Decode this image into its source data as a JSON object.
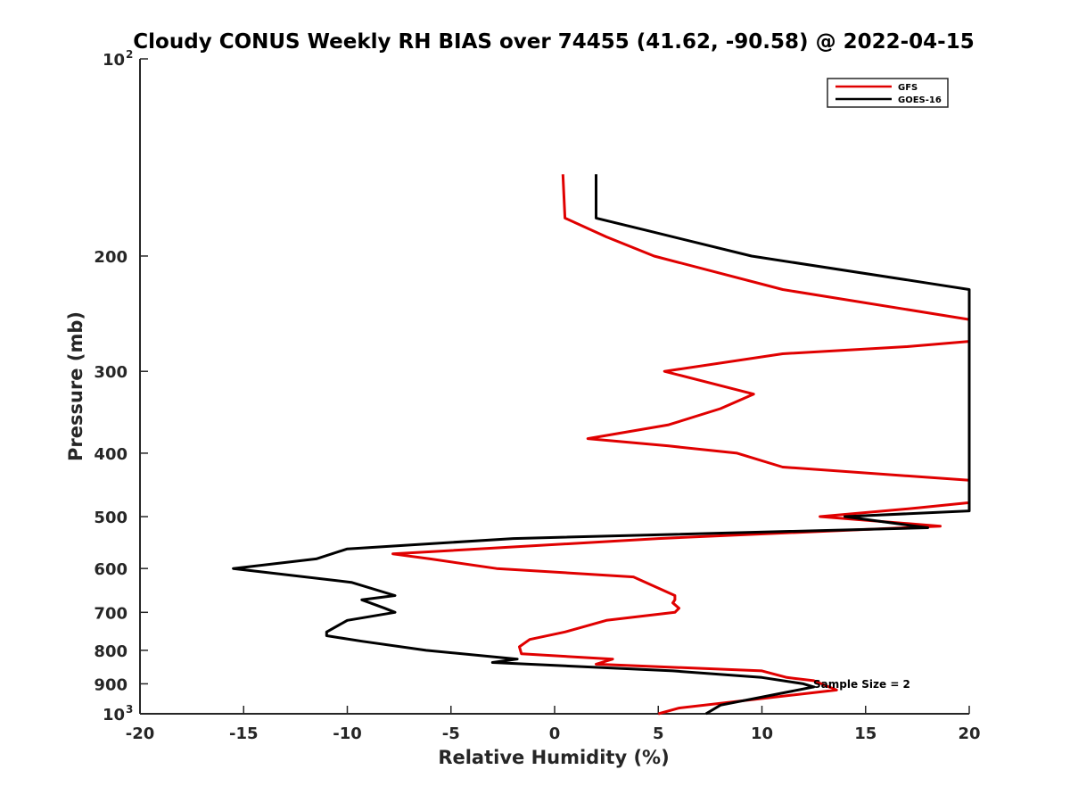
{
  "chart_data": {
    "type": "line",
    "title": "Cloudy CONUS Weekly RH BIAS over 74455 (41.62, -90.58) @ 2022-04-15",
    "xlabel": "Relative Humidity (%)",
    "ylabel": "Pressure (mb)",
    "xlim": [
      -20,
      20
    ],
    "ylim": [
      100,
      1000
    ],
    "y_scale": "log",
    "y_reversed": true,
    "x_ticks": [
      -20,
      -15,
      -10,
      -5,
      0,
      5,
      10,
      15,
      20
    ],
    "x_tick_labels": [
      "-20",
      "-15",
      "-10",
      "-5",
      "0",
      "5",
      "10",
      "15",
      "20"
    ],
    "y_ticks": [
      {
        "value": 100,
        "label": "10",
        "exp": "2"
      },
      {
        "value": 200,
        "label": "200"
      },
      {
        "value": 300,
        "label": "300"
      },
      {
        "value": 400,
        "label": "400"
      },
      {
        "value": 500,
        "label": "500"
      },
      {
        "value": 600,
        "label": "600"
      },
      {
        "value": 700,
        "label": "700"
      },
      {
        "value": 800,
        "label": "800"
      },
      {
        "value": 900,
        "label": "900"
      },
      {
        "value": 1000,
        "label": "10",
        "exp": "3"
      }
    ],
    "grid": false,
    "legend_position": "top-right",
    "annotation": "Sample Size = 2",
    "series": [
      {
        "name": "GFS",
        "color": "#e00000",
        "points": [
          [
            0.4,
            150
          ],
          [
            0.5,
            175
          ],
          [
            2.5,
            187
          ],
          [
            4.8,
            200
          ],
          [
            11.0,
            225
          ],
          [
            20.0,
            250
          ],
          [
            20.0,
            270
          ],
          [
            17.0,
            275
          ],
          [
            11.0,
            282
          ],
          [
            5.3,
            300
          ],
          [
            9.6,
            325
          ],
          [
            8.0,
            342
          ],
          [
            5.5,
            362
          ],
          [
            1.6,
            380
          ],
          [
            5.5,
            390
          ],
          [
            8.8,
            400
          ],
          [
            11.0,
            420
          ],
          [
            20.0,
            440
          ],
          [
            20.0,
            476
          ],
          [
            17.5,
            485
          ],
          [
            12.8,
            500
          ],
          [
            18.6,
            517
          ],
          [
            5.0,
            540
          ],
          [
            -7.8,
            570
          ],
          [
            -6.0,
            580
          ],
          [
            -2.8,
            600
          ],
          [
            3.8,
            618
          ],
          [
            5.8,
            660
          ],
          [
            5.8,
            670
          ],
          [
            5.7,
            677
          ],
          [
            6.0,
            690
          ],
          [
            5.8,
            700
          ],
          [
            2.5,
            720
          ],
          [
            0.5,
            750
          ],
          [
            -1.2,
            770
          ],
          [
            -1.7,
            790
          ],
          [
            -1.6,
            810
          ],
          [
            2.8,
            825
          ],
          [
            2.0,
            840
          ],
          [
            10.0,
            860
          ],
          [
            11.2,
            880
          ],
          [
            12.5,
            890
          ],
          [
            13.6,
            920
          ],
          [
            6.0,
            980
          ],
          [
            5.0,
            1000
          ]
        ]
      },
      {
        "name": "GOES-16",
        "color": "#000000",
        "points": [
          [
            2.0,
            150
          ],
          [
            2.0,
            175
          ],
          [
            4.5,
            183
          ],
          [
            9.5,
            200
          ],
          [
            18.0,
            220
          ],
          [
            20.0,
            225
          ],
          [
            20.0,
            490
          ],
          [
            14.0,
            500
          ],
          [
            18.0,
            520
          ],
          [
            -2.0,
            540
          ],
          [
            -10.0,
            560
          ],
          [
            -11.5,
            580
          ],
          [
            -15.5,
            600
          ],
          [
            -9.8,
            630
          ],
          [
            -7.7,
            660
          ],
          [
            -9.3,
            670
          ],
          [
            -8.2,
            690
          ],
          [
            -7.7,
            700
          ],
          [
            -10.0,
            720
          ],
          [
            -11.0,
            750
          ],
          [
            -11.0,
            760
          ],
          [
            -9.3,
            775
          ],
          [
            -6.2,
            800
          ],
          [
            -1.8,
            825
          ],
          [
            -3.0,
            835
          ],
          [
            5.7,
            860
          ],
          [
            10.0,
            880
          ],
          [
            12.0,
            900
          ],
          [
            12.5,
            910
          ],
          [
            8.0,
            970
          ],
          [
            7.3,
            1000
          ]
        ]
      }
    ]
  }
}
